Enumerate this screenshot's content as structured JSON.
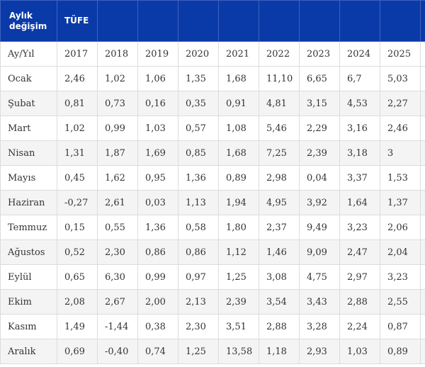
{
  "table": {
    "header": {
      "corner_label": "Aylık değişim",
      "indicator_label": "TÜFE"
    },
    "period_label": "Ay/Yıl",
    "years": [
      "2017",
      "2018",
      "2019",
      "2020",
      "2021",
      "2022",
      "2023",
      "2024",
      "2025"
    ],
    "rows": [
      {
        "month": "Ocak",
        "values": [
          "2,46",
          "1,02",
          "1,06",
          "1,35",
          "1,68",
          "11,10",
          "6,65",
          "6,7",
          "5,03"
        ]
      },
      {
        "month": "Şubat",
        "values": [
          "0,81",
          "0,73",
          "0,16",
          "0,35",
          "0,91",
          "4,81",
          "3,15",
          "4,53",
          "2,27"
        ]
      },
      {
        "month": "Mart",
        "values": [
          "1,02",
          "0,99",
          "1,03",
          "0,57",
          "1,08",
          "5,46",
          "2,29",
          "3,16",
          "2,46"
        ]
      },
      {
        "month": "Nisan",
        "values": [
          "1,31",
          "1,87",
          "1,69",
          "0,85",
          "1,68",
          "7,25",
          "2,39",
          "3,18",
          "3"
        ]
      },
      {
        "month": "Mayıs",
        "values": [
          "0,45",
          "1,62",
          "0,95",
          "1,36",
          "0,89",
          "2,98",
          "0,04",
          "3,37",
          "1,53"
        ]
      },
      {
        "month": "Haziran",
        "values": [
          "-0,27",
          "2,61",
          "0,03",
          "1,13",
          "1,94",
          "4,95",
          "3,92",
          "1,64",
          "1,37"
        ]
      },
      {
        "month": "Temmuz",
        "values": [
          "0,15",
          "0,55",
          "1,36",
          "0,58",
          "1,80",
          "2,37",
          "9,49",
          "3,23",
          "2,06"
        ]
      },
      {
        "month": "Ağustos",
        "values": [
          "0,52",
          "2,30",
          "0,86",
          "0,86",
          "1,12",
          "1,46",
          "9,09",
          "2,47",
          "2,04"
        ]
      },
      {
        "month": "Eylül",
        "values": [
          "0,65",
          "6,30",
          "0,99",
          "0,97",
          "1,25",
          "3,08",
          "4,75",
          "2,97",
          "3,23"
        ]
      },
      {
        "month": "Ekim",
        "values": [
          "2,08",
          "2,67",
          "2,00",
          "2,13",
          "2,39",
          "3,54",
          "3,43",
          "2,88",
          "2,55"
        ]
      },
      {
        "month": "Kasım",
        "values": [
          "1,49",
          "-1,44",
          "0,38",
          "2,30",
          "3,51",
          "2,88",
          "3,28",
          "2,24",
          "0,87"
        ]
      },
      {
        "month": "Aralık",
        "values": [
          "0,69",
          "-0,40",
          "0,74",
          "1,25",
          "13,58",
          "1,18",
          "2,93",
          "1,03",
          "0,89"
        ]
      }
    ]
  }
}
